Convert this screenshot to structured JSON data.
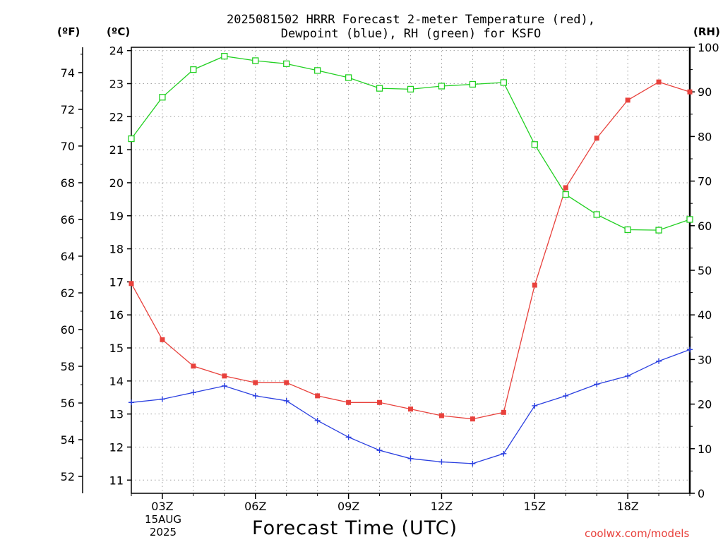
{
  "title_line1": "2025081502 HRRR Forecast 2-meter Temperature (red),",
  "title_line2": "Dewpoint (blue), RH (green) for KSFO",
  "unit_f": "(ºF)",
  "unit_c": "(ºC)",
  "unit_rh": "(RH)",
  "date_day": "15AUG",
  "date_year": "2025",
  "credit": "coolwx.com/models",
  "colors": {
    "temperature": "#e8413c",
    "dewpoint": "#2a3fe0",
    "rh": "#22d022",
    "grid": "#a0a0a0"
  },
  "chart_data": {
    "type": "line",
    "title": "2025081502 HRRR Forecast 2-meter Temperature (red), Dewpoint (blue), RH (green) for KSFO",
    "xlabel": "Forecast Time (UTC)",
    "x": [
      2,
      3,
      4,
      5,
      6,
      7,
      8,
      9,
      10,
      11,
      12,
      13,
      14,
      15,
      16,
      17,
      18,
      19,
      20
    ],
    "xlim": [
      2,
      20
    ],
    "xticks": [
      3,
      6,
      9,
      12,
      15,
      18
    ],
    "xtick_labels": [
      "03Z",
      "06Z",
      "09Z",
      "12Z",
      "15Z",
      "18Z"
    ],
    "y_left_celsius": {
      "label": "(ºC)",
      "ylim": [
        10.6,
        24.1
      ],
      "ticks": [
        11,
        12,
        13,
        14,
        15,
        16,
        17,
        18,
        19,
        20,
        21,
        22,
        23,
        24
      ]
    },
    "y_left_fahrenheit": {
      "label": "(ºF)",
      "ticks": [
        52,
        54,
        56,
        58,
        60,
        62,
        64,
        66,
        68,
        70,
        72,
        74
      ]
    },
    "y_right_rh": {
      "label": "(RH)",
      "ylim": [
        0,
        100
      ],
      "ticks": [
        0,
        10,
        20,
        30,
        40,
        50,
        60,
        70,
        80,
        90,
        100
      ]
    },
    "grid": true,
    "series": [
      {
        "name": "Temperature (red)",
        "axis": "celsius",
        "marker": "square",
        "values": [
          16.95,
          15.25,
          14.45,
          14.15,
          13.95,
          13.95,
          13.55,
          13.35,
          13.35,
          13.15,
          12.95,
          12.85,
          13.05,
          16.9,
          19.85,
          21.35,
          22.5,
          23.05,
          22.75
        ]
      },
      {
        "name": "Dewpoint (blue)",
        "axis": "celsius",
        "marker": "plus",
        "values": [
          13.35,
          13.45,
          13.65,
          13.85,
          13.55,
          13.4,
          12.8,
          12.3,
          11.9,
          11.65,
          11.55,
          11.5,
          11.8,
          13.25,
          13.55,
          13.9,
          14.15,
          14.6,
          14.95
        ]
      },
      {
        "name": "RH (green)",
        "axis": "rh",
        "marker": "open-square",
        "values": [
          79.5,
          88.8,
          95.0,
          98.0,
          97.0,
          96.3,
          94.8,
          93.2,
          90.8,
          90.6,
          91.3,
          91.7,
          92.1,
          78.2,
          67.0,
          62.5,
          59.1,
          59.0,
          61.4
        ]
      }
    ]
  }
}
